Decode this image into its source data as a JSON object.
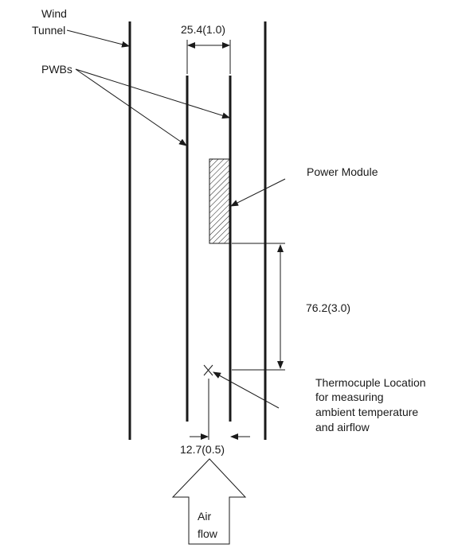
{
  "labels": {
    "wind_tunnel_line1": "Wind",
    "wind_tunnel_line2": "Tunnel",
    "pwbs": "PWBs",
    "board_spacing": "25.4(1.0)",
    "power_module": "Power Module",
    "module_distance": "76.2(3.0)",
    "thermocouple_line1": "Thermocuple Location",
    "thermocouple_line2": "for measuring",
    "thermocouple_line3": "ambient temperature",
    "thermocouple_line4": "and airflow",
    "thermocouple_spacing": "12.7(0.5)",
    "air_line1": "Air",
    "air_line2": "flow"
  }
}
